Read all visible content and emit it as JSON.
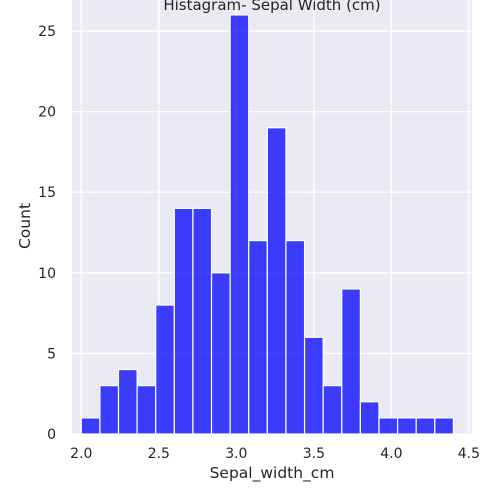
{
  "chart_data": {
    "type": "bar",
    "title": "Histagram- Sepal Width (cm)",
    "xlabel": "Sepal_width_cm",
    "ylabel": "Count",
    "bins": [
      {
        "start": 2.0,
        "end": 2.12,
        "count": 1
      },
      {
        "start": 2.12,
        "end": 2.24,
        "count": 3
      },
      {
        "start": 2.24,
        "end": 2.36,
        "count": 4
      },
      {
        "start": 2.36,
        "end": 2.48,
        "count": 3
      },
      {
        "start": 2.48,
        "end": 2.6,
        "count": 8
      },
      {
        "start": 2.6,
        "end": 2.72,
        "count": 14
      },
      {
        "start": 2.72,
        "end": 2.84,
        "count": 14
      },
      {
        "start": 2.84,
        "end": 2.96,
        "count": 10
      },
      {
        "start": 2.96,
        "end": 3.08,
        "count": 26
      },
      {
        "start": 3.08,
        "end": 3.2,
        "count": 12
      },
      {
        "start": 3.2,
        "end": 3.32,
        "count": 19
      },
      {
        "start": 3.32,
        "end": 3.44,
        "count": 12
      },
      {
        "start": 3.44,
        "end": 3.56,
        "count": 6
      },
      {
        "start": 3.56,
        "end": 3.68,
        "count": 3
      },
      {
        "start": 3.68,
        "end": 3.8,
        "count": 9
      },
      {
        "start": 3.8,
        "end": 3.92,
        "count": 2
      },
      {
        "start": 3.92,
        "end": 4.04,
        "count": 1
      },
      {
        "start": 4.04,
        "end": 4.16,
        "count": 1
      },
      {
        "start": 4.16,
        "end": 4.28,
        "count": 1
      },
      {
        "start": 4.28,
        "end": 4.4,
        "count": 1
      }
    ],
    "xticks": [
      "2.0",
      "2.5",
      "3.0",
      "3.5",
      "4.0",
      "4.5"
    ],
    "yticks": [
      "0",
      "5",
      "10",
      "15",
      "20",
      "25"
    ],
    "xlim": [
      1.94,
      4.52
    ],
    "ylim": [
      0,
      27.3
    ],
    "grid": true,
    "bar_color": "#0000FF",
    "background_color": "#EAEAF2",
    "grid_color": "#FFFFFF"
  }
}
